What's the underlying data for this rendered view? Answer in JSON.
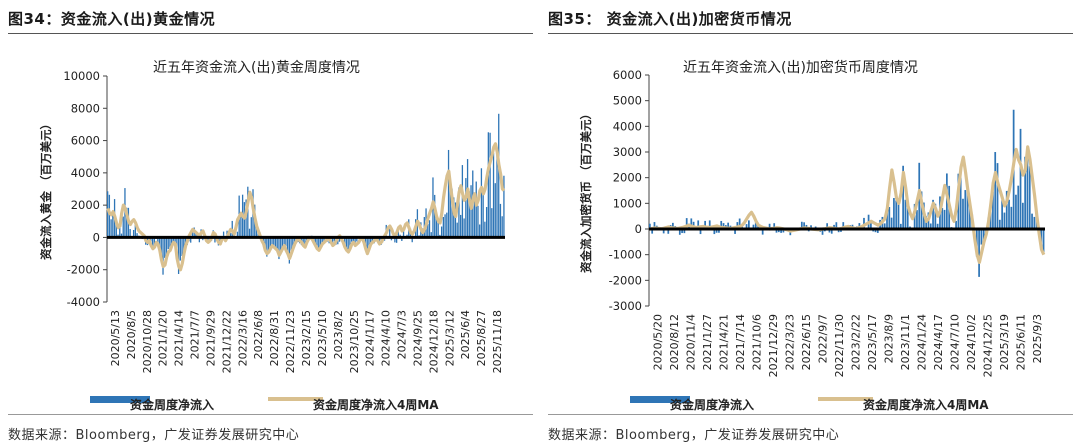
{
  "left": {
    "fig_title": "图34：资金流入(出)黄金情况",
    "source": "数据来源：Bloomberg，广发证券发展研究中心",
    "chart_data": {
      "type": "bar",
      "title": "近五年资金流入(出)黄金周度情况",
      "ylabel": "资金流入黄金 （百万美元）",
      "ylim": [
        -4000,
        10000
      ],
      "yticks": [
        "-4000",
        "-2000",
        "0",
        "2000",
        "4000",
        "6000",
        "8000",
        "10000"
      ],
      "ytick_values": [
        -4000,
        -2000,
        0,
        2000,
        4000,
        6000,
        8000,
        10000
      ],
      "xticks": [
        "2020/5/13",
        "2020/8/5",
        "2020/10/28",
        "2021/1/20",
        "2021/4/14",
        "2021/7/7",
        "2021/9/29",
        "2021/12/22",
        "2022/3/16",
        "2022/6/8",
        "2022/8/31",
        "2022/11/23",
        "2023/2/15",
        "2023/5/10",
        "2023/8/2",
        "2023/10/25",
        "2024/1/17",
        "2024/4/10",
        "2024/7/3",
        "2024/9/25",
        "2024/12/18",
        "2025/3/12",
        "2025/6/4",
        "2025/8/27",
        "2025/11/18"
      ],
      "ma_values": [
        1800,
        1500,
        1400,
        1600,
        1300,
        900,
        600,
        700,
        1500,
        2000,
        1800,
        1400,
        1000,
        800,
        1000,
        1100,
        900,
        600,
        400,
        300,
        200,
        100,
        -200,
        -300,
        -200,
        -500,
        -700,
        -600,
        -300,
        -400,
        -800,
        -1400,
        -1800,
        -1700,
        -1200,
        -900,
        -800,
        -500,
        -300,
        -400,
        -1300,
        -1800,
        -2000,
        -1600,
        -1000,
        -500,
        -200,
        100,
        300,
        500,
        400,
        300,
        200,
        100,
        300,
        400,
        100,
        -200,
        -300,
        -200,
        0,
        300,
        200,
        -100,
        -300,
        -400,
        -100,
        0,
        -200,
        0,
        300,
        500,
        400,
        200,
        600,
        1100,
        1300,
        1500,
        1300,
        1200,
        1600,
        2200,
        2800,
        2500,
        1800,
        1200,
        700,
        400,
        100,
        -200,
        -400,
        -800,
        -1000,
        -900,
        -700,
        -500,
        -600,
        -700,
        -800,
        -1100,
        -900,
        -700,
        -500,
        -800,
        -1000,
        -1300,
        -1000,
        -700,
        -400,
        -200,
        -100,
        -200,
        -300,
        -500,
        -600,
        -300,
        -100,
        0,
        -100,
        -300,
        -500,
        -700,
        -800,
        -600,
        -400,
        -300,
        -200,
        -100,
        -100,
        -300,
        -500,
        -400,
        -200,
        0,
        100,
        -100,
        -300,
        -600,
        -800,
        -900,
        -700,
        -400,
        -300,
        -500,
        -400,
        -300,
        -100,
        -50,
        -300,
        -700,
        -1000,
        -700,
        -400,
        -300,
        -200,
        -100,
        -200,
        -400,
        -300,
        -100,
        100,
        300,
        600,
        700,
        500,
        200,
        100,
        300,
        600,
        700,
        400,
        500,
        800,
        900,
        600,
        300,
        200,
        400,
        700,
        1000,
        800,
        500,
        300,
        500,
        800,
        1200,
        1500,
        1800,
        2200,
        1800,
        1300,
        1000,
        900,
        1500,
        2500,
        3200,
        3800,
        4100,
        3200,
        2400,
        1500,
        1300,
        2000,
        2800,
        3200,
        2700,
        2300,
        2500,
        3000,
        2300,
        1800,
        2400,
        2700,
        2000,
        2300,
        2900,
        3100,
        2700,
        3000,
        3700,
        4300,
        4700,
        5100,
        5600,
        5800,
        5300,
        4500,
        3900,
        3000,
        2900
      ],
      "series": [
        {
          "name": "资金周度净流入",
          "color": "#2e75b6"
        },
        {
          "name": "资金周度净流入4周MA",
          "color": "#d9c08f"
        }
      ]
    }
  },
  "right": {
    "fig_title": "图35： 资金流入(出)加密货币情况",
    "source": "数据来源：Bloomberg，广发证券发展研究中心",
    "chart_data": {
      "type": "bar",
      "title": "近五年资金流入(出)加密货币周度情况",
      "ylabel": "资金流入加密货币 （百万美元）",
      "ylim": [
        -3000,
        6000
      ],
      "yticks": [
        "-3000",
        "-2000",
        "-1000",
        "0",
        "1000",
        "2000",
        "3000",
        "4000",
        "5000",
        "6000"
      ],
      "ytick_values": [
        -3000,
        -2000,
        -1000,
        0,
        1000,
        2000,
        3000,
        4000,
        5000,
        6000
      ],
      "xticks": [
        "2020/5/20",
        "2020/8/12",
        "2020/11/4",
        "2021/1/27",
        "2021/4/21",
        "2021/7/14",
        "2021/10/6",
        "2021/12/29",
        "2022/3/23",
        "2022/6/15",
        "2022/9/7",
        "2022/11/30",
        "2023/2/22",
        "2023/5/17",
        "2023/8/9",
        "2023/11/1",
        "2024/1/24",
        "2024/4/17",
        "2024/7/10",
        "2024/10/2",
        "2024/12/25",
        "2025/3/19",
        "2025/6/11",
        "2025/9/3"
      ],
      "ma_values": [
        0,
        20,
        40,
        30,
        20,
        10,
        30,
        60,
        80,
        50,
        40,
        30,
        20,
        40,
        60,
        90,
        120,
        150,
        110,
        80,
        60,
        70,
        90,
        100,
        80,
        70,
        60,
        80,
        100,
        120,
        90,
        60,
        50,
        40,
        30,
        20,
        40,
        60,
        80,
        100,
        150,
        250,
        400,
        550,
        650,
        500,
        300,
        150,
        100,
        60,
        40,
        20,
        0,
        20,
        30,
        50,
        40,
        20,
        0,
        -20,
        -50,
        -80,
        -60,
        -40,
        -20,
        0,
        20,
        40,
        30,
        20,
        0,
        -10,
        -20,
        -30,
        -20,
        0,
        10,
        30,
        50,
        40,
        20,
        10,
        0,
        20,
        50,
        80,
        100,
        60,
        40,
        20,
        30,
        60,
        100,
        150,
        200,
        250,
        300,
        250,
        200,
        150,
        200,
        300,
        400,
        800,
        1600,
        2300,
        1800,
        1200,
        1000,
        1400,
        2200,
        1600,
        900,
        600,
        400,
        700,
        1100,
        1500,
        1000,
        600,
        300,
        400,
        700,
        1000,
        800,
        500,
        700,
        1200,
        1700,
        1300,
        900,
        500,
        300,
        800,
        1600,
        2400,
        2800,
        2200,
        1500,
        900,
        300,
        -400,
        -1000,
        -1300,
        -900,
        -500,
        -200,
        300,
        1000,
        1800,
        2200,
        1800,
        1500,
        1200,
        900,
        1100,
        1500,
        2000,
        2600,
        3100,
        2700,
        2500,
        2100,
        2300,
        3200,
        2700,
        2000,
        1300,
        500,
        -200,
        -800,
        -1000
      ]
    }
  }
}
